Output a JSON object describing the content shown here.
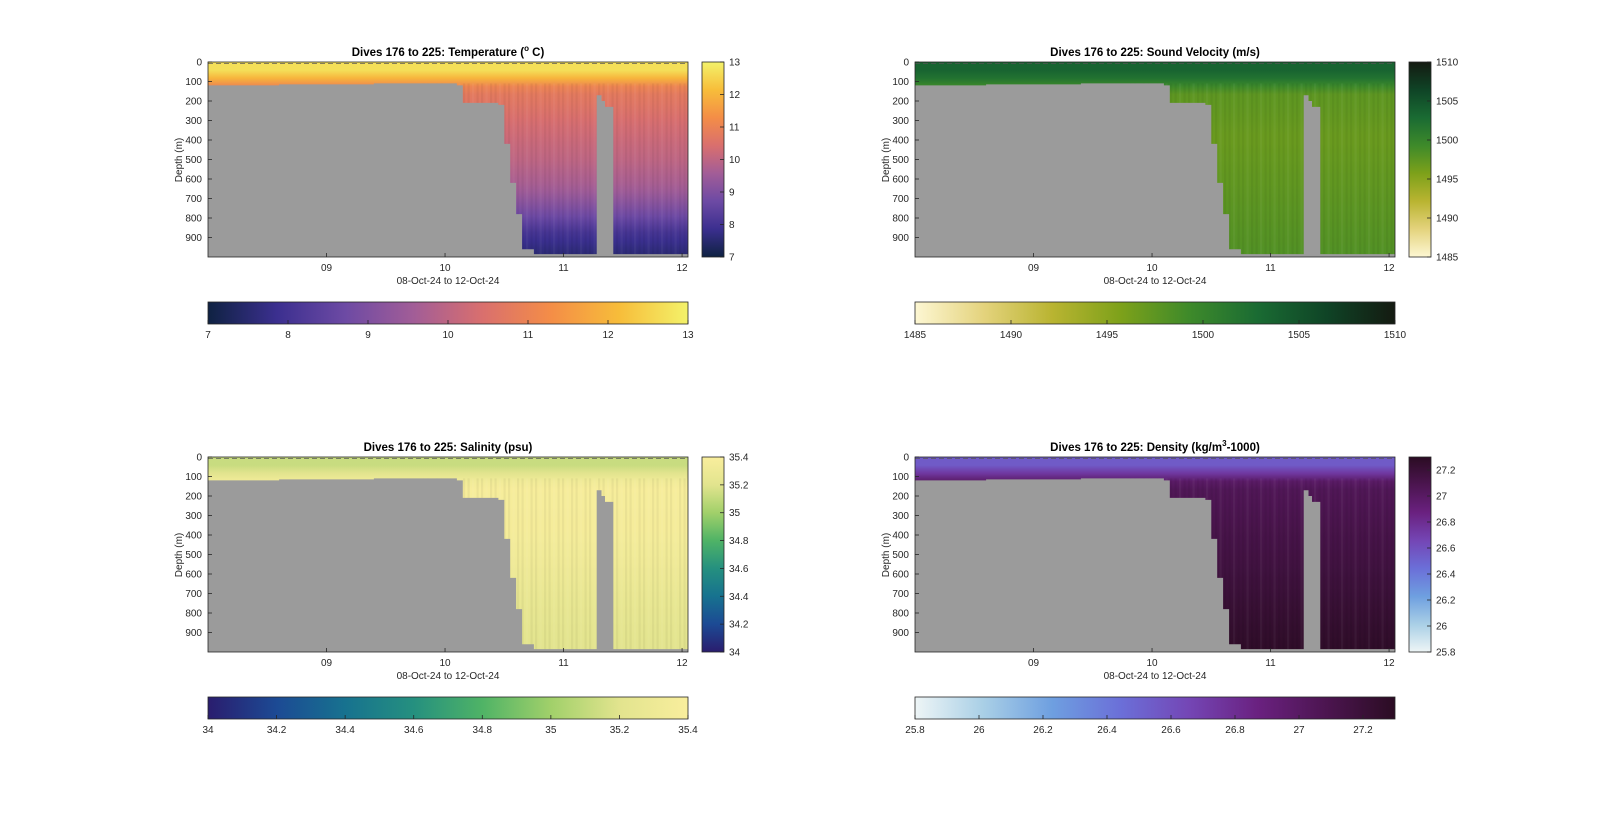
{
  "figure": {
    "background": "#ffffff",
    "mask_color": "#9b9b9b",
    "axis_color": "#262626"
  },
  "chart_data": [
    {
      "type": "heatmap",
      "title": "Dives 176 to 225: Temperature (° C)",
      "title_parts": {
        "before": "Dives 176 to 225: Temperature (",
        "sup": "o",
        "after": " C)"
      },
      "xlabel": "08-Oct-24 to 12-Oct-24",
      "ylabel": "Depth (m)",
      "xticks": [
        {
          "x": 9,
          "label": "09"
        },
        {
          "x": 10,
          "label": "10"
        },
        {
          "x": 11,
          "label": "11"
        },
        {
          "x": 12,
          "label": "12"
        }
      ],
      "xlim": [
        8,
        12.05
      ],
      "yticks": [
        0,
        100,
        200,
        300,
        400,
        500,
        600,
        700,
        800,
        900
      ],
      "ylim": [
        0,
        1000
      ],
      "clim": [
        7,
        13
      ],
      "cticks": [
        7,
        8,
        9,
        10,
        11,
        12,
        13
      ],
      "colormap": [
        "#0f2242",
        "#3b2f8f",
        "#6d4aa4",
        "#a25d97",
        "#d96f6e",
        "#f48d47",
        "#f7bd3a",
        "#f3f26a"
      ],
      "surface_layer": {
        "depth_to": 60,
        "value": 12.7
      },
      "mixed_layer": {
        "depth_to": 110,
        "value": 11.2
      },
      "deep_profile": [
        {
          "depth": 150,
          "value": 10.8
        },
        {
          "depth": 300,
          "value": 10.4
        },
        {
          "depth": 500,
          "value": 10.0
        },
        {
          "depth": 650,
          "value": 9.6
        },
        {
          "depth": 780,
          "value": 8.8
        },
        {
          "depth": 880,
          "value": 8.0
        },
        {
          "depth": 1000,
          "value": 7.5
        }
      ],
      "colorbar_right": {
        "ticks": [
          "13",
          "12",
          "11",
          "10",
          "9",
          "8",
          "7"
        ]
      },
      "colorbar_bottom": {
        "ticks": [
          "7",
          "8",
          "9",
          "10",
          "11",
          "12",
          "13"
        ]
      }
    },
    {
      "type": "heatmap",
      "title": "Dives 176 to 225: Sound Velocity (m/s)",
      "title_parts": {
        "before": "Dives 176 to 225: Sound Velocity (m/s)",
        "sup": "",
        "after": ""
      },
      "xlabel": "08-Oct-24 to 12-Oct-24",
      "ylabel": "Depth (m)",
      "xticks": [
        {
          "x": 9,
          "label": "09"
        },
        {
          "x": 10,
          "label": "10"
        },
        {
          "x": 11,
          "label": "11"
        },
        {
          "x": 12,
          "label": "12"
        }
      ],
      "xlim": [
        8,
        12.05
      ],
      "yticks": [
        0,
        100,
        200,
        300,
        400,
        500,
        600,
        700,
        800,
        900
      ],
      "ylim": [
        0,
        1000
      ],
      "clim": [
        1485,
        1510
      ],
      "cticks": [
        1485,
        1490,
        1495,
        1500,
        1505,
        1510
      ],
      "colormap": [
        "#fdf7d3",
        "#e4d37d",
        "#b9b431",
        "#7da11a",
        "#3e8a2a",
        "#1a6b33",
        "#0f4426",
        "#141a11"
      ],
      "surface_layer": {
        "depth_to": 60,
        "value": 1503.5
      },
      "mixed_layer": {
        "depth_to": 110,
        "value": 1500.5
      },
      "deep_profile": [
        {
          "depth": 150,
          "value": 1497.5
        },
        {
          "depth": 400,
          "value": 1496.8
        },
        {
          "depth": 700,
          "value": 1497.5
        },
        {
          "depth": 1000,
          "value": 1498.2
        }
      ],
      "colorbar_right": {
        "ticks": [
          "1510",
          "1505",
          "1500",
          "1495",
          "1490",
          "1485"
        ]
      },
      "colorbar_bottom": {
        "ticks": [
          "1485",
          "1490",
          "1495",
          "1500",
          "1505",
          "1510"
        ]
      }
    },
    {
      "type": "heatmap",
      "title": "Dives 176 to 225: Salinity (psu)",
      "title_parts": {
        "before": "Dives 176 to 225: Salinity (psu)",
        "sup": "",
        "after": ""
      },
      "xlabel": "08-Oct-24 to 12-Oct-24",
      "ylabel": "Depth (m)",
      "xticks": [
        {
          "x": 9,
          "label": "09"
        },
        {
          "x": 10,
          "label": "10"
        },
        {
          "x": 11,
          "label": "11"
        },
        {
          "x": 12,
          "label": "12"
        }
      ],
      "xlim": [
        8,
        12.05
      ],
      "yticks": [
        0,
        100,
        200,
        300,
        400,
        500,
        600,
        700,
        800,
        900
      ],
      "ylim": [
        0,
        1000
      ],
      "clim": [
        34,
        35.4
      ],
      "cticks": [
        34,
        34.2,
        34.4,
        34.6,
        34.8,
        35,
        35.2,
        35.4
      ],
      "colormap": [
        "#2a1d6e",
        "#1c4a94",
        "#17728f",
        "#25907f",
        "#4fb366",
        "#a1d06a",
        "#e2e48e",
        "#f9ee9d"
      ],
      "surface_layer": {
        "depth_to": 60,
        "value": 35.12
      },
      "mixed_layer": {
        "depth_to": 110,
        "value": 35.3
      },
      "deep_profile": [
        {
          "depth": 150,
          "value": 35.38
        },
        {
          "depth": 400,
          "value": 35.36
        },
        {
          "depth": 600,
          "value": 35.3
        },
        {
          "depth": 800,
          "value": 35.24
        },
        {
          "depth": 1000,
          "value": 35.2
        }
      ],
      "colorbar_right": {
        "ticks": [
          "35.4",
          "35.2",
          "35",
          "34.8",
          "34.6",
          "34.4",
          "34.2",
          "34"
        ]
      },
      "colorbar_bottom": {
        "ticks": [
          "34",
          "34.2",
          "34.4",
          "34.6",
          "34.8",
          "35",
          "35.2",
          "35.4"
        ]
      }
    },
    {
      "type": "heatmap",
      "title": "Dives 176 to 225: Density (kg/m³-1000)",
      "title_parts": {
        "before": "Dives 176 to 225: Density (kg/m",
        "sup": "3",
        "after": "-1000)"
      },
      "xlabel": "08-Oct-24 to 12-Oct-24",
      "ylabel": "Depth (m)",
      "xticks": [
        {
          "x": 9,
          "label": "09"
        },
        {
          "x": 10,
          "label": "10"
        },
        {
          "x": 11,
          "label": "11"
        },
        {
          "x": 12,
          "label": "12"
        }
      ],
      "xlim": [
        8,
        12.05
      ],
      "yticks": [
        0,
        100,
        200,
        300,
        400,
        500,
        600,
        700,
        800,
        900
      ],
      "ylim": [
        0,
        1000
      ],
      "clim": [
        25.8,
        27.3
      ],
      "cticks": [
        25.8,
        26,
        26.2,
        26.4,
        26.6,
        26.8,
        27,
        27.2
      ],
      "colormap": [
        "#eef5f6",
        "#a9cfe6",
        "#6e9fe0",
        "#6b6fd8",
        "#7446b5",
        "#6a2180",
        "#4c1550",
        "#2b0c23"
      ],
      "surface_layer": {
        "depth_to": 60,
        "value": 26.55
      },
      "mixed_layer": {
        "depth_to": 110,
        "value": 26.95
      },
      "deep_profile": [
        {
          "depth": 150,
          "value": 27.05
        },
        {
          "depth": 400,
          "value": 27.12
        },
        {
          "depth": 700,
          "value": 27.2
        },
        {
          "depth": 1000,
          "value": 27.28
        }
      ],
      "colorbar_right": {
        "ticks": [
          "27.2",
          "27",
          "26.8",
          "26.6",
          "26.4",
          "26.2",
          "26",
          "25.8"
        ]
      },
      "colorbar_bottom": {
        "ticks": [
          "25.8",
          "26",
          "26.2",
          "26.4",
          "26.6",
          "26.8",
          "27",
          "27.2"
        ]
      }
    }
  ],
  "dives": {
    "bottom_depth": [
      {
        "x": 8.0,
        "depth": 120
      },
      {
        "x": 8.6,
        "depth": 115
      },
      {
        "x": 9.4,
        "depth": 110
      },
      {
        "x": 10.1,
        "depth": 120
      },
      {
        "x": 10.15,
        "depth": 210
      },
      {
        "x": 10.45,
        "depth": 220
      },
      {
        "x": 10.5,
        "depth": 420
      },
      {
        "x": 10.55,
        "depth": 620
      },
      {
        "x": 10.6,
        "depth": 780
      },
      {
        "x": 10.65,
        "depth": 960
      },
      {
        "x": 10.75,
        "depth": 985
      },
      {
        "x": 11.25,
        "depth": 985
      },
      {
        "x": 11.28,
        "depth": 170
      },
      {
        "x": 11.32,
        "depth": 200
      },
      {
        "x": 11.35,
        "depth": 230
      },
      {
        "x": 11.42,
        "depth": 985
      },
      {
        "x": 12.05,
        "depth": 985
      }
    ]
  }
}
